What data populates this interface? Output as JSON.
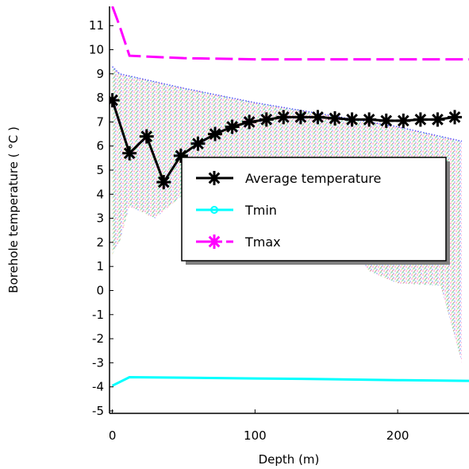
{
  "chart_data": {
    "type": "line",
    "xlabel": "Depth (m)",
    "ylabel": "Borehole temperature (  °C  )",
    "xlim": [
      -2,
      250
    ],
    "ylim": [
      -5.1,
      11.8
    ],
    "x_ticks": [
      0,
      100,
      200
    ],
    "y_ticks": [
      -5,
      -4,
      -3,
      -2,
      -1,
      0,
      1,
      2,
      3,
      4,
      5,
      6,
      7,
      8,
      9,
      10,
      11
    ],
    "grid": false,
    "legend_position": "center-right",
    "series": [
      {
        "name": "Average temperature",
        "color": "#000000",
        "marker": "asterisk",
        "x": [
          0,
          12,
          24,
          36,
          48,
          60,
          72,
          84,
          96,
          108,
          120,
          132,
          144,
          156,
          168,
          180,
          192,
          204,
          216,
          228,
          240
        ],
        "y": [
          7.9,
          5.7,
          6.4,
          4.5,
          5.6,
          6.1,
          6.5,
          6.8,
          7.0,
          7.1,
          7.2,
          7.2,
          7.2,
          7.15,
          7.1,
          7.1,
          7.05,
          7.05,
          7.1,
          7.1,
          7.2
        ]
      },
      {
        "name": "Tmin",
        "color": "#00ffff",
        "marker": "circle",
        "x": [
          0,
          12,
          50,
          100,
          150,
          200,
          250
        ],
        "y": [
          -3.95,
          -3.6,
          -3.62,
          -3.65,
          -3.68,
          -3.72,
          -3.75
        ]
      },
      {
        "name": "Tmax",
        "color": "#ff00ff",
        "marker": "asterisk",
        "x": [
          0,
          5,
          12,
          30,
          50,
          100,
          150,
          200,
          250
        ],
        "y": [
          11.8,
          11.0,
          9.75,
          9.7,
          9.65,
          9.6,
          9.6,
          9.6,
          9.6
        ]
      }
    ],
    "envelope": {
      "upper": {
        "x": [
          0,
          5,
          50,
          100,
          150,
          200,
          245
        ],
        "y": [
          9.3,
          9.0,
          8.4,
          7.8,
          7.3,
          6.8,
          6.2
        ]
      },
      "lower": {
        "x": [
          0,
          5,
          12,
          30,
          50,
          80,
          100,
          150,
          180,
          200,
          230,
          245
        ],
        "y": [
          1.5,
          2.0,
          3.5,
          3.0,
          4.0,
          4.3,
          4.5,
          3.5,
          0.8,
          0.3,
          0.2,
          -3.0
        ]
      }
    }
  }
}
